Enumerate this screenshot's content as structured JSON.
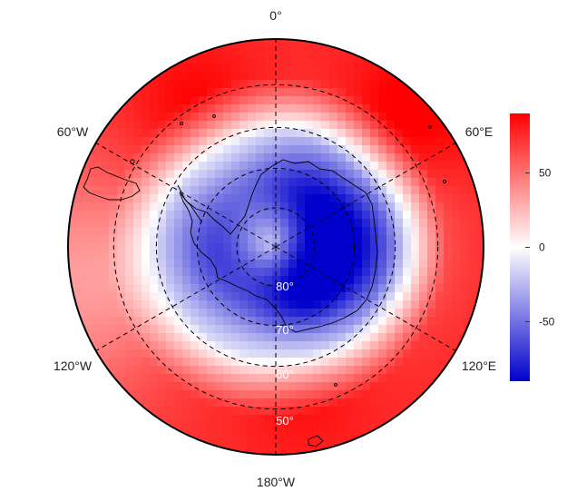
{
  "map": {
    "projection": "south-polar-stereographic",
    "lat_rings": [
      -80,
      -70,
      -60,
      -50
    ],
    "lon_lines": [
      0,
      60,
      120,
      180,
      -120,
      -60
    ],
    "lon_labels": [
      {
        "id": "lon-0",
        "text": "0°"
      },
      {
        "id": "lon-60e",
        "text": "60°E"
      },
      {
        "id": "lon-120e",
        "text": "120°E"
      },
      {
        "id": "lon-180",
        "text": "180°W"
      },
      {
        "id": "lon-120w",
        "text": "120°W"
      },
      {
        "id": "lon-60w",
        "text": "60°W"
      }
    ],
    "lat_labels": [
      {
        "id": "lat-80",
        "text": "80°"
      },
      {
        "id": "lat-70",
        "text": "70°"
      },
      {
        "id": "lat-60",
        "text": "60°"
      },
      {
        "id": "lat-50",
        "text": "50°"
      }
    ],
    "colorbar": {
      "min": -90,
      "max": 90,
      "ticks": [
        {
          "value": 50,
          "text": "50"
        },
        {
          "value": 0,
          "text": "0"
        },
        {
          "value": -50,
          "text": "-50"
        }
      ],
      "colors": {
        "low": "#0000cc",
        "mid": "#ffffff",
        "high": "#ff0000"
      }
    }
  }
}
